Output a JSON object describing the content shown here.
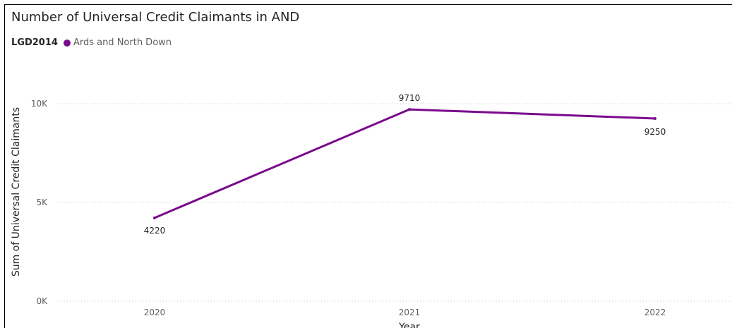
{
  "chart_data": {
    "type": "line",
    "title": "Number of Universal Credit Claimants in AND",
    "legend_title": "LGD2014",
    "categories": [
      "2020",
      "2021",
      "2022"
    ],
    "series": [
      {
        "name": "Ards and North Down",
        "values": [
          4220,
          9710,
          9250
        ],
        "color": "#7a0a8c"
      }
    ],
    "data_labels": [
      "4220",
      "9710",
      "9250"
    ],
    "xlabel": "Year",
    "ylabel": "Sum of Universal Credit Claimants",
    "y_ticks": [
      0,
      5000,
      10000
    ],
    "y_tick_labels": [
      "0K",
      "5K",
      "10K"
    ],
    "ylim": [
      0,
      10000
    ],
    "grid": true,
    "legend_position": "top-left"
  }
}
